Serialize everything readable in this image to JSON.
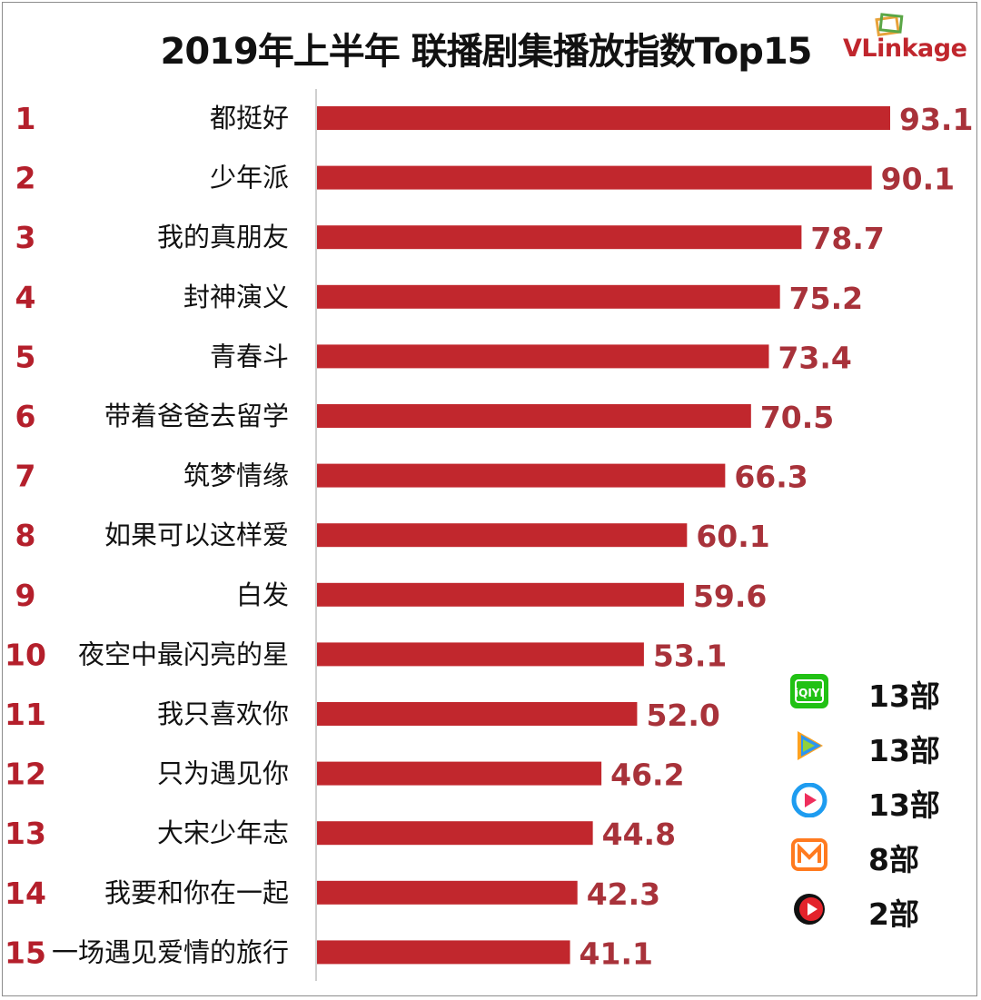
{
  "title": "2019年上半年 联播剧集播放指数Top15",
  "brand": {
    "logo_text_a": "V",
    "logo_text_b": "Link",
    "logo_text_c": "age",
    "color": "#c0262d"
  },
  "colors": {
    "bar": "#c1272d",
    "rank": "#b41f2b",
    "value": "#a8323a",
    "axis": "#bfbfbf"
  },
  "chart_data": {
    "type": "bar",
    "orientation": "horizontal",
    "title": "2019年上半年 联播剧集播放指数Top15",
    "categories": [
      "都挺好",
      "少年派",
      "我的真朋友",
      "封神演义",
      "青春斗",
      "带着爸爸去留学",
      "筑梦情缘",
      "如果可以这样爱",
      "白发",
      "夜空中最闪亮的星",
      "我只喜欢你",
      "只为遇见你",
      "大宋少年志",
      "我要和你在一起",
      "一场遇见爱情的旅行"
    ],
    "ranks": [
      "1",
      "2",
      "3",
      "4",
      "5",
      "6",
      "7",
      "8",
      "9",
      "10",
      "11",
      "12",
      "13",
      "14",
      "15"
    ],
    "values": [
      93.1,
      90.1,
      78.7,
      75.2,
      73.4,
      70.5,
      66.3,
      60.1,
      59.6,
      53.1,
      52.0,
      46.2,
      44.8,
      42.3,
      41.1
    ],
    "value_labels": [
      "93.1",
      "90.1",
      "78.7",
      "75.2",
      "73.4",
      "70.5",
      "66.3",
      "60.1",
      "59.6",
      "53.1",
      "52.0",
      "46.2",
      "44.8",
      "42.3",
      "41.1"
    ],
    "xlim": [
      0,
      93.1
    ],
    "grid": false,
    "legend": "bottom-right"
  },
  "legend": [
    {
      "icon": "iqiyi-icon",
      "count": "13部"
    },
    {
      "icon": "tencent-video-icon",
      "count": "13部"
    },
    {
      "icon": "youku-icon",
      "count": "13部"
    },
    {
      "icon": "mango-tv-icon",
      "count": "8部"
    },
    {
      "icon": "sohu-video-icon",
      "count": "2部"
    }
  ]
}
